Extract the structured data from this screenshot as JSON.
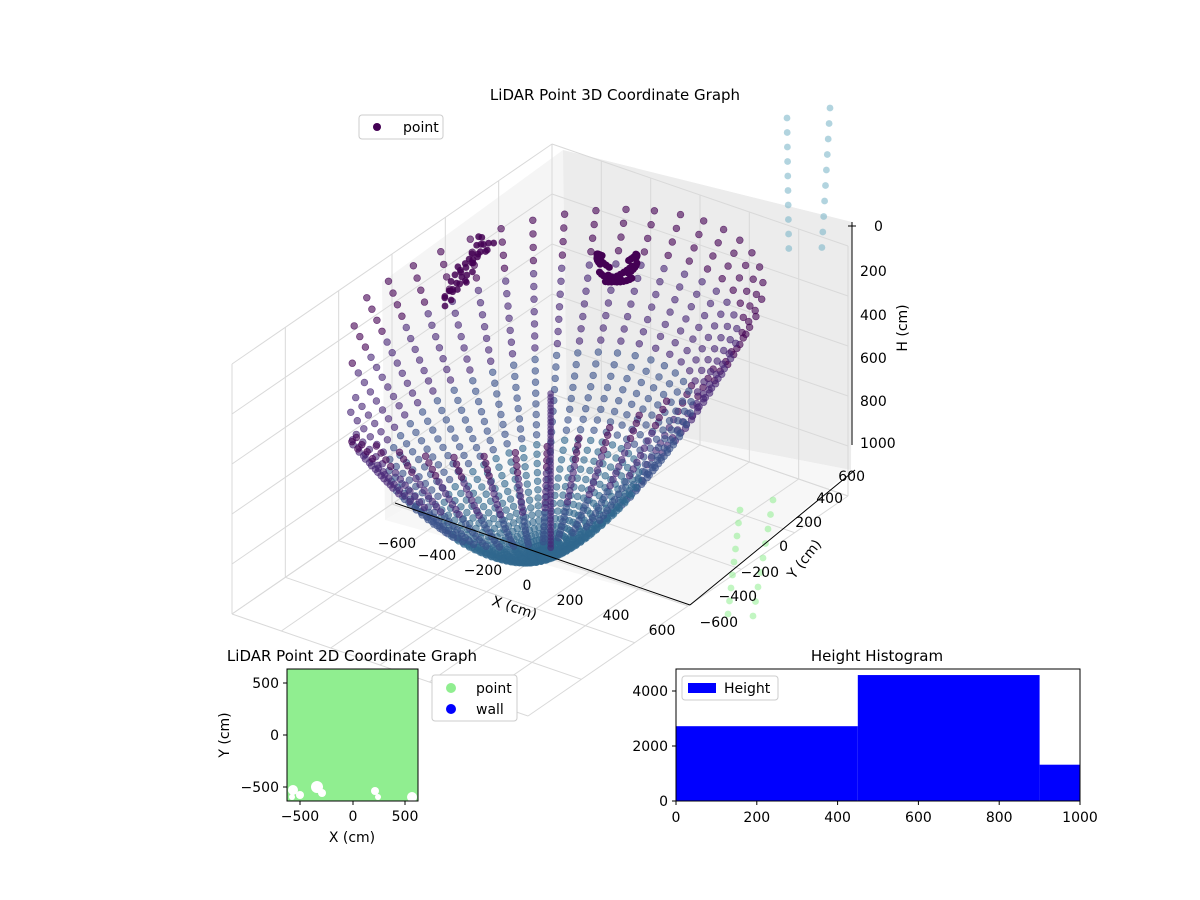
{
  "colors": {
    "viridis_dark": "#440154",
    "viridis_purple": "#482677",
    "viridis_blue": "#3b528b",
    "viridis_teal": "#31688e",
    "light_teal": "#7fb7c9",
    "light_green": "#90ee90",
    "wall_blue": "#0000ff",
    "hist_blue": "#0000ff",
    "pane": "#f2f2f2",
    "grid": "#d9d9d9"
  },
  "chart_data": [
    {
      "type": "scatter",
      "title": "LiDAR Point 3D Coordinate Graph",
      "xlabel": "X (cm)",
      "ylabel": "Y (cm)",
      "zlabel": "H (cm)",
      "x_ticks": [
        "−600",
        "−400",
        "−200",
        "0",
        "200",
        "400",
        "600"
      ],
      "y_ticks": [
        "−600",
        "−400",
        "−200",
        "0",
        "200",
        "400",
        "600"
      ],
      "z_ticks": [
        "0",
        "200",
        "400",
        "600",
        "800",
        "1000"
      ],
      "xlim": [
        -600,
        600
      ],
      "ylim": [
        -600,
        600
      ],
      "zlim": [
        0,
        1000
      ],
      "z_inverted": true,
      "legend": {
        "position": "upper-left",
        "entries": [
          "point"
        ]
      },
      "series": [
        {
          "name": "point",
          "color_map": "viridis",
          "pattern": "dome of radial scan lines, height increasing with radius"
        }
      ]
    },
    {
      "type": "scatter",
      "title": "LiDAR Point 2D Coordinate Graph",
      "xlabel": "X (cm)",
      "ylabel": "Y (cm)",
      "x_ticks": [
        "−500",
        "0",
        "500"
      ],
      "y_ticks": [
        "−500",
        "0",
        "500"
      ],
      "xlim": [
        -620,
        620
      ],
      "ylim": [
        -620,
        620
      ],
      "legend": {
        "position": "outside-right",
        "entries": [
          "point",
          "wall"
        ]
      },
      "series": [
        {
          "name": "point",
          "color": "#90ee90"
        },
        {
          "name": "wall",
          "color": "#0000ff"
        }
      ]
    },
    {
      "type": "bar",
      "title": "Height Histogram",
      "x_ticks": [
        "0",
        "200",
        "400",
        "600",
        "800",
        "1000"
      ],
      "y_ticks": [
        "0",
        "2000",
        "4000"
      ],
      "xlim": [
        0,
        1000
      ],
      "ylim": [
        0,
        4800
      ],
      "legend": {
        "position": "upper-left",
        "entries": [
          "Height"
        ]
      },
      "bins": [
        {
          "x0": 0,
          "x1": 450,
          "count": 2720
        },
        {
          "x0": 450,
          "x1": 900,
          "count": 4580
        },
        {
          "x0": 900,
          "x1": 1000,
          "count": 1320
        }
      ]
    }
  ]
}
